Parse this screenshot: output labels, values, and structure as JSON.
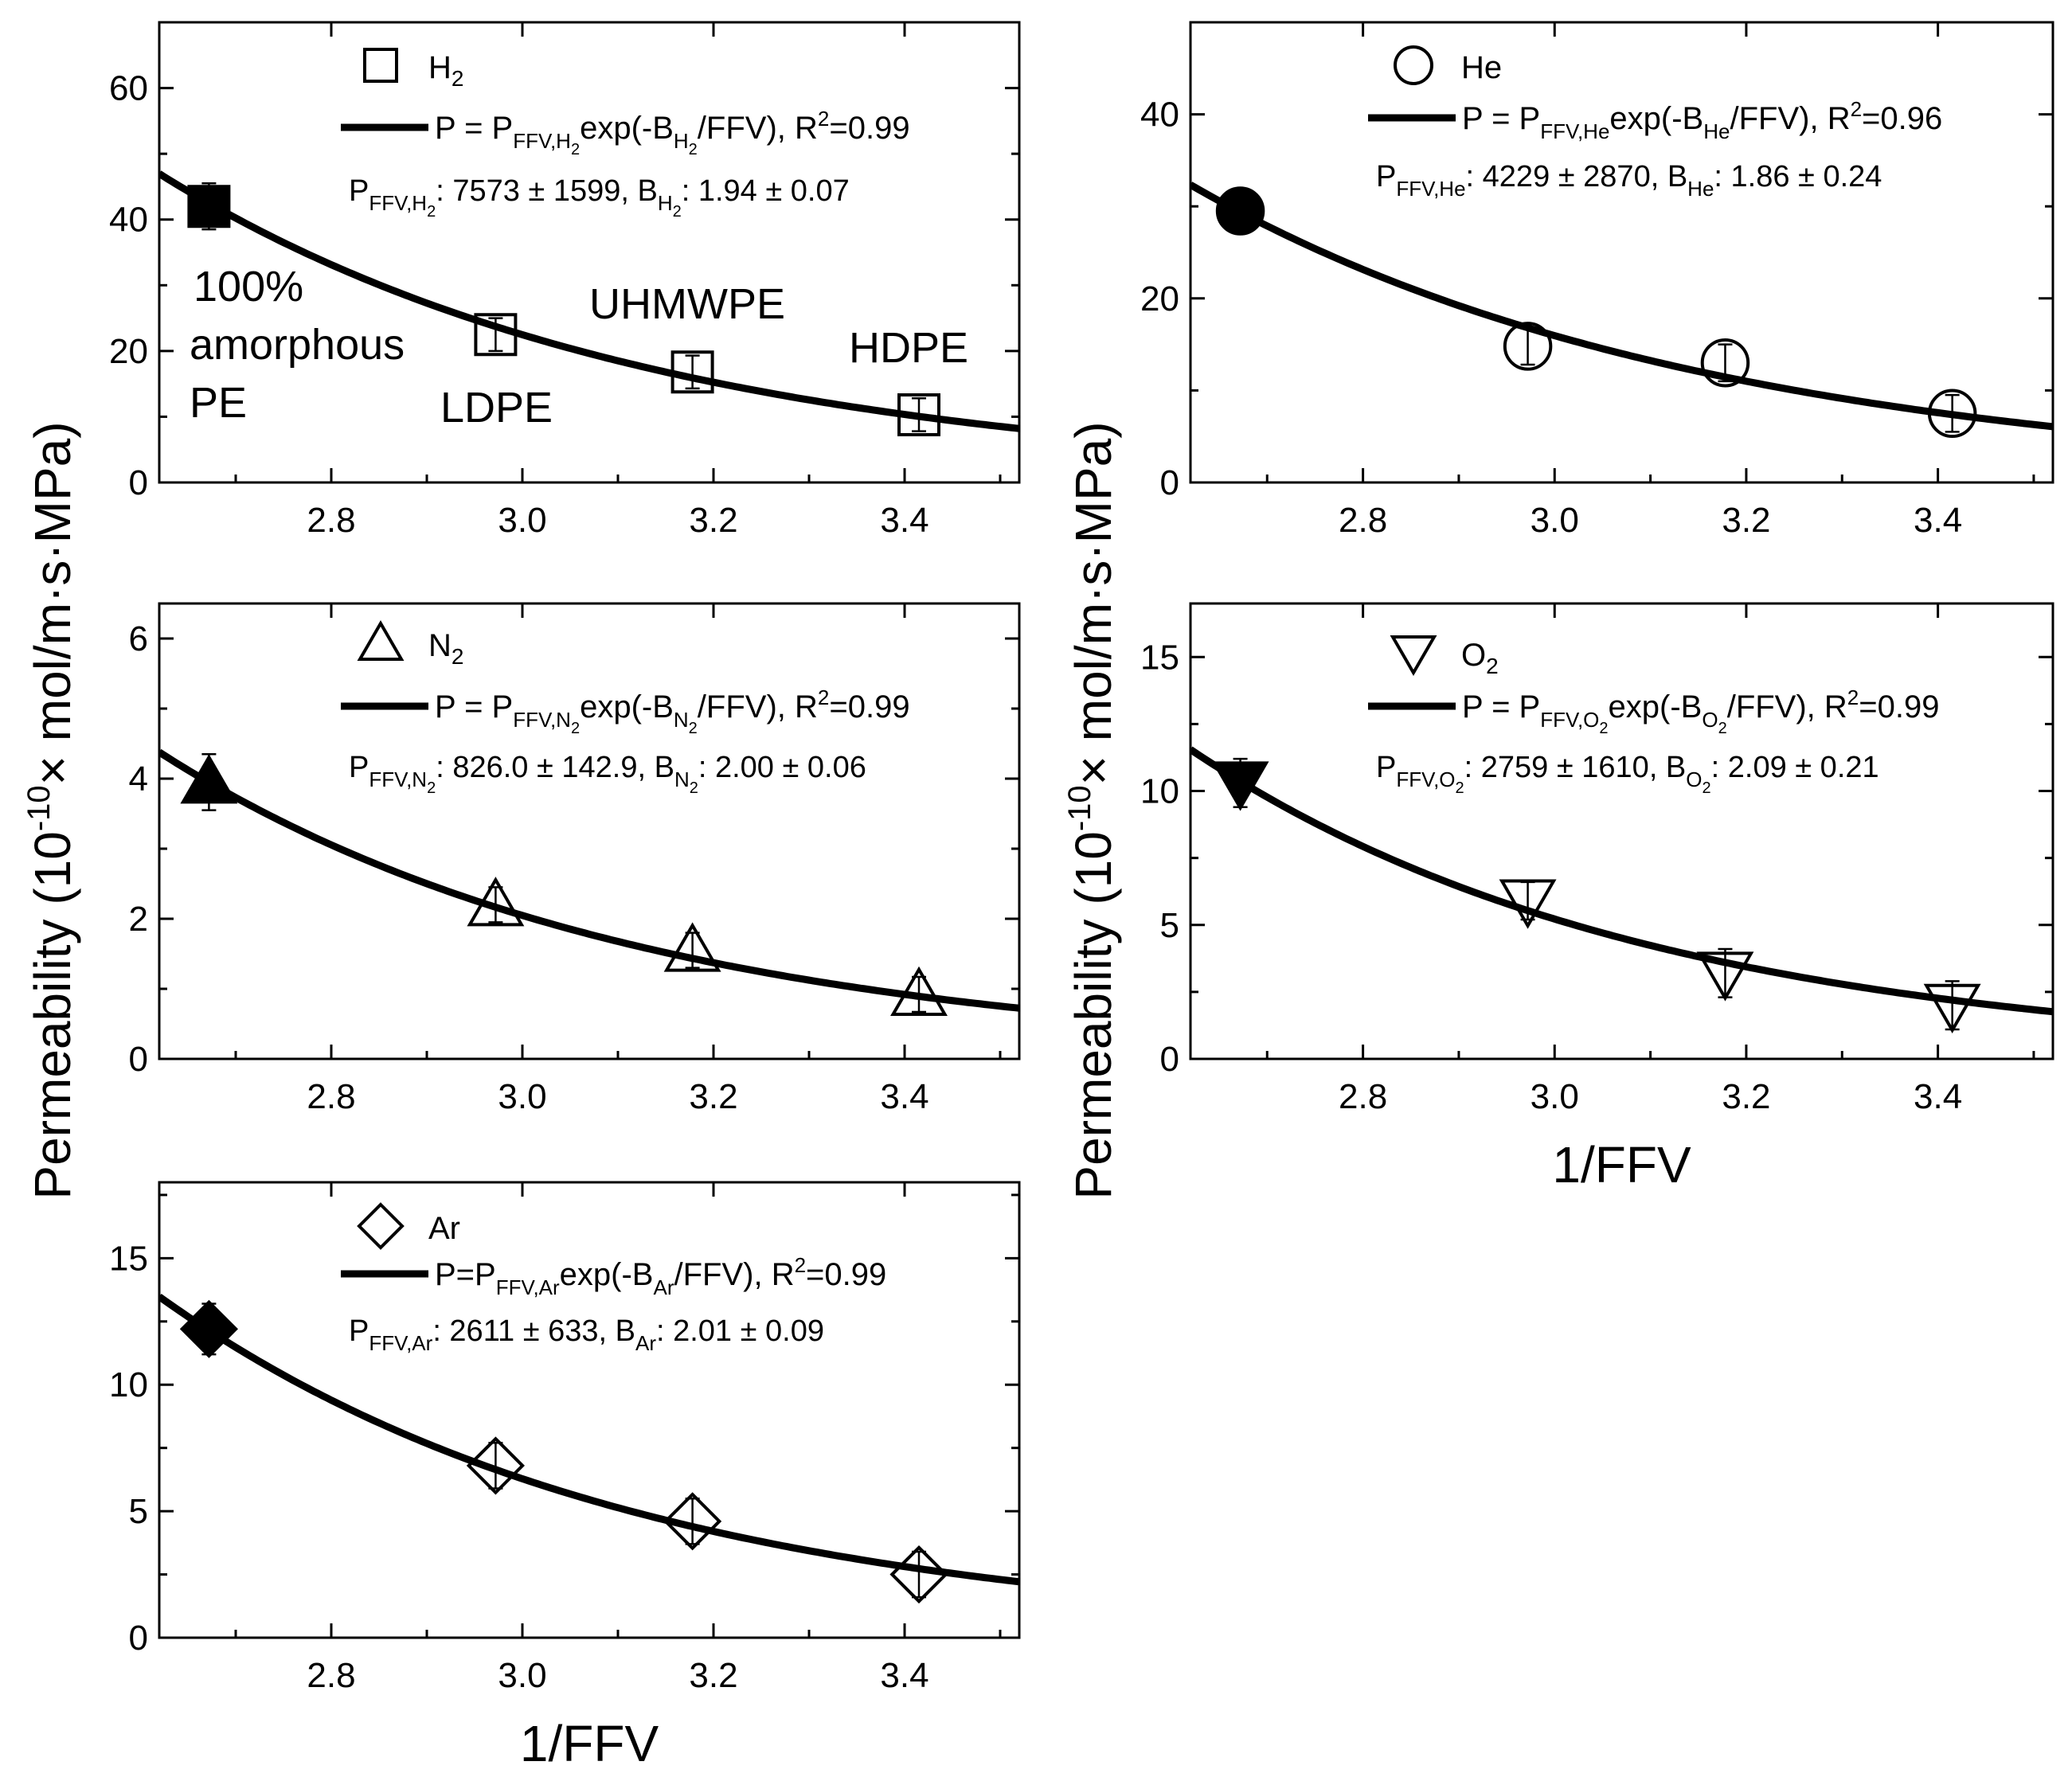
{
  "figure": {
    "ylabel": "Permeability (10",
    "ylabel_sup": "-10",
    "ylabel_tail": "× mol/m·s·MPa)",
    "xlabel": "1/FFV",
    "samples": [
      "100%",
      "amorphous",
      "PE",
      "LDPE",
      "UHMWPE",
      "HDPE"
    ]
  },
  "chart_data": [
    {
      "id": "h2",
      "type": "scatter",
      "gas": "H2",
      "legend": {
        "marker_label": "H",
        "marker_sub": "2"
      },
      "equation": {
        "pre": "P = P",
        "sub1": "FFV,H",
        "sub1b": "2",
        "mid": "exp(-B",
        "sub2": "H",
        "sub2b": "2",
        "post": "/FFV), R",
        "sup": "2",
        "end": "=0.99"
      },
      "params": {
        "p": "P",
        "p_sub": "FFV,H",
        "p_subb": "2",
        "p_val": ": 7573 ± 1599, B",
        "b_sub": "H",
        "b_subb": "2",
        "b_val": ": 1.94 ± 0.07"
      },
      "x": [
        2.672,
        2.972,
        3.178,
        3.415
      ],
      "y": [
        42.0,
        22.5,
        16.8,
        10.3
      ],
      "err": [
        3.5,
        2.5,
        2.5,
        2.5
      ],
      "fit": {
        "A": 7573,
        "B": 1.94
      },
      "xlim": [
        2.62,
        3.52
      ],
      "ylim": [
        0,
        70
      ],
      "xticks": [
        "2.8",
        "3.0",
        "3.2",
        "3.4"
      ],
      "xtick_values": [
        2.8,
        3.0,
        3.2,
        3.4
      ],
      "yticks": [
        "0",
        "20",
        "40",
        "60"
      ],
      "ytick_values": [
        0,
        20,
        40,
        60
      ],
      "xlabel": "",
      "marker": "square"
    },
    {
      "id": "he",
      "type": "scatter",
      "gas": "He",
      "legend": {
        "marker_label": "He",
        "marker_sub": ""
      },
      "equation": {
        "pre": "P = P",
        "sub1": "FFV,He",
        "sub1b": "",
        "mid": "exp(-B",
        "sub2": "He",
        "sub2b": "",
        "post": "/FFV), R",
        "sup": "2",
        "end": "=0.96"
      },
      "params": {
        "p": "P",
        "p_sub": "FFV,He",
        "p_subb": "",
        "p_val": ": 4229 ± 2870, B",
        "b_sub": "He",
        "b_subb": "",
        "b_val": ": 1.86 ± 0.24"
      },
      "x": [
        2.672,
        2.972,
        3.178,
        3.415
      ],
      "y": [
        29.5,
        14.8,
        13.0,
        7.5
      ],
      "err": [
        1.5,
        2.0,
        2.0,
        2.0
      ],
      "fit": {
        "A": 4229,
        "B": 1.86
      },
      "xlim": [
        2.62,
        3.52
      ],
      "ylim": [
        0,
        50
      ],
      "xticks": [
        "2.8",
        "3.0",
        "3.2",
        "3.4"
      ],
      "xtick_values": [
        2.8,
        3.0,
        3.2,
        3.4
      ],
      "yticks": [
        "0",
        "20",
        "40"
      ],
      "ytick_values": [
        0,
        20,
        40
      ],
      "xlabel": "",
      "marker": "circle"
    },
    {
      "id": "n2",
      "type": "scatter",
      "gas": "N2",
      "legend": {
        "marker_label": "N",
        "marker_sub": "2"
      },
      "equation": {
        "pre": "P = P",
        "sub1": "FFV,N",
        "sub1b": "2",
        "mid": "exp(-B",
        "sub2": "N",
        "sub2b": "2",
        "post": "/FFV), R",
        "sup": "2",
        "end": "=0.99"
      },
      "params": {
        "p": "P",
        "p_sub": "FFV,N",
        "p_subb": "2",
        "p_val": ": 826.0 ± 142.9, B",
        "b_sub": "N",
        "b_subb": "2",
        "b_val": ": 2.00 ± 0.06"
      },
      "x": [
        2.672,
        2.972,
        3.178,
        3.415
      ],
      "y": [
        3.95,
        2.2,
        1.55,
        0.92
      ],
      "err": [
        0.4,
        0.25,
        0.25,
        0.25
      ],
      "fit": {
        "A": 826.0,
        "B": 2.0
      },
      "xlim": [
        2.62,
        3.52
      ],
      "ylim": [
        0,
        6.5
      ],
      "xticks": [
        "2.8",
        "3.0",
        "3.2",
        "3.4"
      ],
      "xtick_values": [
        2.8,
        3.0,
        3.2,
        3.4
      ],
      "yticks": [
        "0",
        "2",
        "4",
        "6"
      ],
      "ytick_values": [
        0,
        2,
        4,
        6
      ],
      "xlabel": "",
      "marker": "triangle-up"
    },
    {
      "id": "o2",
      "type": "scatter",
      "gas": "O2",
      "legend": {
        "marker_label": "O",
        "marker_sub": "2"
      },
      "equation": {
        "pre": "P = P",
        "sub1": "FFV,O",
        "sub1b": "2",
        "mid": "exp(-B",
        "sub2": "O",
        "sub2b": "2",
        "post": "/FFV), R",
        "sup": "2",
        "end": "=0.99"
      },
      "params": {
        "p": "P",
        "p_sub": "FFV,O",
        "p_subb": "2",
        "p_val": ": 2759 ± 1610, B",
        "b_sub": "O",
        "b_subb": "2",
        "b_val": ": 2.09 ± 0.21"
      },
      "x": [
        2.672,
        2.972,
        3.178,
        3.415
      ],
      "y": [
        10.3,
        5.9,
        3.2,
        2.0
      ],
      "err": [
        0.9,
        0.7,
        0.9,
        0.9
      ],
      "fit": {
        "A": 2759,
        "B": 2.09
      },
      "xlim": [
        2.62,
        3.52
      ],
      "ylim": [
        0,
        17
      ],
      "xticks": [
        "2.8",
        "3.0",
        "3.2",
        "3.4"
      ],
      "xtick_values": [
        2.8,
        3.0,
        3.2,
        3.4
      ],
      "yticks": [
        "0",
        "5",
        "10",
        "15"
      ],
      "ytick_values": [
        0,
        5,
        10,
        15
      ],
      "xlabel": "1/FFV",
      "marker": "triangle-down"
    },
    {
      "id": "ar",
      "type": "scatter",
      "gas": "Ar",
      "legend": {
        "marker_label": "Ar",
        "marker_sub": ""
      },
      "equation": {
        "pre": "P=P",
        "sub1": "FFV,Ar",
        "sub1b": "",
        "mid": "exp(-B",
        "sub2": "Ar",
        "sub2b": "",
        "post": "/FFV), R",
        "sup": "2",
        "end": "=0.99"
      },
      "params": {
        "p": "P",
        "p_sub": "FFV,Ar",
        "p_subb": "",
        "p_val": ": 2611 ± 633, B",
        "b_sub": "Ar",
        "b_subb": "",
        "b_val": ": 2.01 ± 0.09"
      },
      "x": [
        2.672,
        2.972,
        3.178,
        3.415
      ],
      "y": [
        12.2,
        6.8,
        4.6,
        2.5
      ],
      "err": [
        1.0,
        0.9,
        0.9,
        0.9
      ],
      "fit": {
        "A": 2611,
        "B": 2.01
      },
      "xlim": [
        2.62,
        3.52
      ],
      "ylim": [
        0,
        18
      ],
      "xticks": [
        "2.8",
        "3.0",
        "3.2",
        "3.4"
      ],
      "xtick_values": [
        2.8,
        3.0,
        3.2,
        3.4
      ],
      "yticks": [
        "0",
        "5",
        "10",
        "15"
      ],
      "ytick_values": [
        0,
        5,
        10,
        15
      ],
      "xlabel": "1/FFV",
      "marker": "diamond"
    }
  ]
}
